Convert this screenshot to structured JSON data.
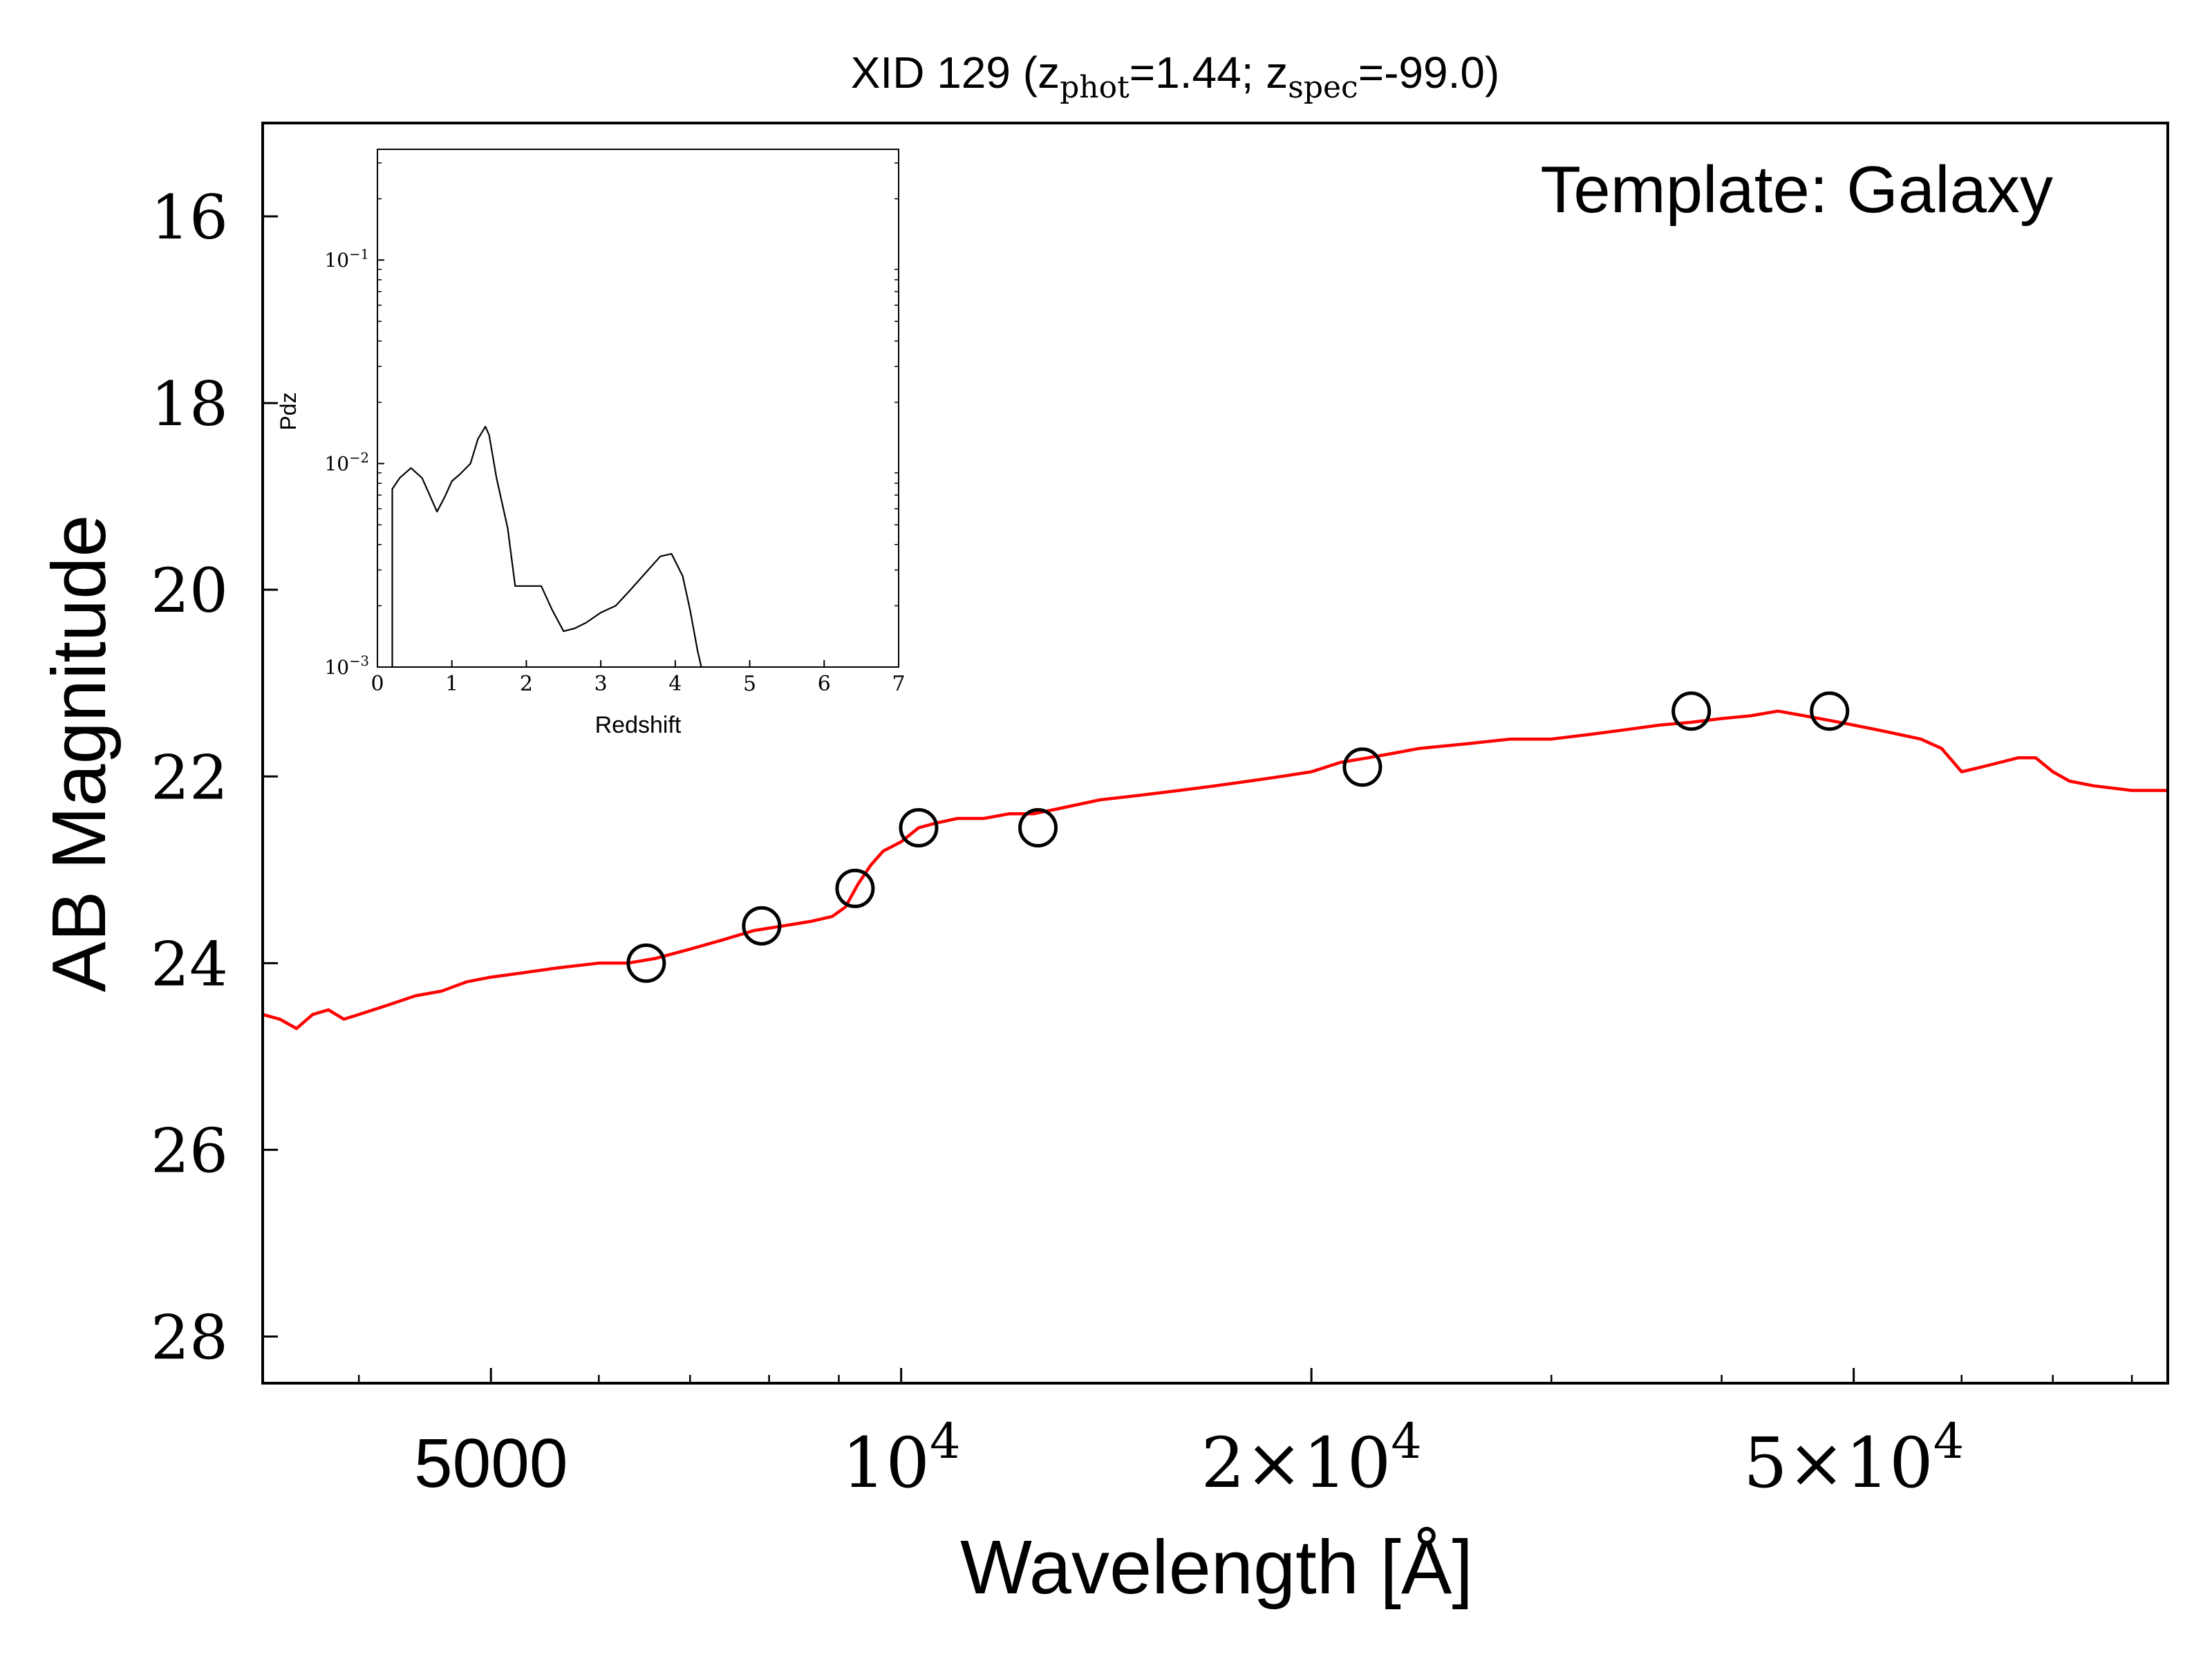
{
  "chart_data": [
    {
      "type": "line",
      "title_prefix": "XID 129 (z",
      "title_sub1": "phot",
      "title_mid": "=1.44; z",
      "title_sub2": "spec",
      "title_suffix": "=-99.0)",
      "annotation": "Template: Galaxy",
      "xlabel": "Wavelength [Å]",
      "ylabel": "AB Magnitude",
      "x_scale": "log",
      "y_inverted": true,
      "xlim": [
        3400,
        85000
      ],
      "ylim": [
        28.5,
        15
      ],
      "x_ticks": [
        {
          "value": 5000,
          "label": "5000"
        },
        {
          "value": 10000,
          "base": "10",
          "exp": "4"
        },
        {
          "value": 20000,
          "base": "2×10",
          "exp": "4"
        },
        {
          "value": 50000,
          "base": "5×10",
          "exp": "4"
        }
      ],
      "y_ticks": [
        16,
        18,
        20,
        22,
        24,
        26,
        28
      ],
      "series": [
        {
          "kind": "template-spectrum",
          "color": "#ff0000",
          "x": [
            3400,
            3500,
            3600,
            3700,
            3800,
            3900,
            4000,
            4200,
            4400,
            4600,
            4800,
            5000,
            5300,
            5600,
            6000,
            6300,
            6600,
            7000,
            7400,
            7800,
            8200,
            8600,
            8900,
            9100,
            9300,
            9500,
            9700,
            10000,
            10300,
            10600,
            11000,
            11500,
            12000,
            12500,
            13000,
            14000,
            15000,
            16000,
            17000,
            18000,
            19000,
            20000,
            21000,
            22000,
            23000,
            24000,
            26000,
            28000,
            30000,
            32000,
            34000,
            36000,
            38000,
            40000,
            42000,
            44000,
            46000,
            48000,
            50000,
            52000,
            54000,
            56000,
            58000,
            60000,
            62000,
            64000,
            66000,
            68000,
            70000,
            72000,
            75000,
            80000,
            85000
          ],
          "y": [
            24.55,
            24.6,
            24.7,
            24.55,
            24.5,
            24.6,
            24.55,
            24.45,
            24.35,
            24.3,
            24.2,
            24.15,
            24.1,
            24.05,
            24.0,
            24.0,
            23.95,
            23.85,
            23.75,
            23.65,
            23.6,
            23.55,
            23.5,
            23.4,
            23.15,
            22.95,
            22.8,
            22.7,
            22.55,
            22.5,
            22.45,
            22.45,
            22.4,
            22.4,
            22.35,
            22.25,
            22.2,
            22.15,
            22.1,
            22.05,
            22.0,
            21.95,
            21.85,
            21.8,
            21.75,
            21.7,
            21.65,
            21.6,
            21.6,
            21.55,
            21.5,
            21.45,
            21.42,
            21.38,
            21.35,
            21.3,
            21.35,
            21.4,
            21.45,
            21.5,
            21.55,
            21.6,
            21.7,
            21.95,
            21.9,
            21.85,
            21.8,
            21.8,
            21.95,
            22.05,
            22.1,
            22.15,
            22.15
          ]
        },
        {
          "kind": "observed-photometry",
          "color": "#000000",
          "marker": "open-circle",
          "x": [
            6500,
            7900,
            9250,
            10300,
            12600,
            21800,
            38000,
            48000
          ],
          "y": [
            24.0,
            23.6,
            23.2,
            22.55,
            22.55,
            21.9,
            21.3,
            21.3
          ]
        }
      ]
    },
    {
      "type": "line",
      "role": "inset",
      "xlabel": "Redshift",
      "ylabel": "Pdz",
      "x_scale": "linear",
      "y_scale": "log",
      "xlim": [
        0,
        7
      ],
      "ylim": [
        0.001,
        0.35
      ],
      "x_ticks": [
        "0",
        "1",
        "2",
        "3",
        "4",
        "5",
        "6",
        "7"
      ],
      "y_ticks": [
        {
          "value": 0.1,
          "base": "10",
          "exp": "−1"
        },
        {
          "value": 0.01,
          "base": "10",
          "exp": "−2"
        },
        {
          "value": 0.001,
          "base": "10",
          "exp": "−3"
        }
      ],
      "series": [
        {
          "kind": "pdz",
          "color": "#000000",
          "x": [
            0.2,
            0.2,
            0.3,
            0.45,
            0.6,
            0.8,
            0.9,
            1.0,
            1.1,
            1.25,
            1.35,
            1.45,
            1.5,
            1.6,
            1.75,
            1.85,
            2.0,
            2.2,
            2.35,
            2.5,
            2.65,
            2.8,
            3.0,
            3.2,
            3.4,
            3.6,
            3.8,
            3.95,
            4.1,
            4.2,
            4.3,
            4.35
          ],
          "y": [
            0.001,
            0.0075,
            0.0085,
            0.0095,
            0.0085,
            0.0058,
            0.0068,
            0.0082,
            0.0088,
            0.01,
            0.0132,
            0.0152,
            0.0138,
            0.0085,
            0.0048,
            0.0025,
            0.0025,
            0.0025,
            0.0019,
            0.0015,
            0.00155,
            0.00165,
            0.00185,
            0.002,
            0.0024,
            0.0029,
            0.0035,
            0.0036,
            0.0028,
            0.0019,
            0.0012,
            0.001
          ]
        }
      ]
    }
  ]
}
